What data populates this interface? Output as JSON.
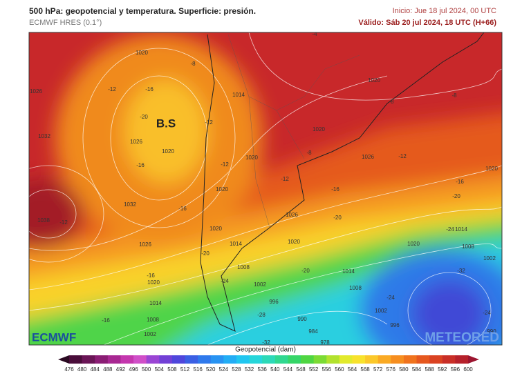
{
  "header": {
    "title": "500 hPa: geopotencial y temperatura. Superficie: presión.",
    "model": "ECMWF HRES (0.1°)",
    "init": "Inicio: Jue 18 jul 2024, 00 UTC",
    "valid": "Válido: Sáb 20 jul 2024, 18 UTC (H+66)"
  },
  "map": {
    "pressure_center": "B.S",
    "labels": [
      "1020",
      "-8",
      "1026",
      "-12",
      "-16",
      "-20",
      "1032",
      "1026",
      "1020",
      "-16",
      "-12",
      "1014",
      "-4",
      "1020",
      "-8",
      "-8",
      "1020",
      "-8",
      "1020",
      "-12",
      "1026",
      "-12",
      "1020",
      "-16",
      "-12",
      "-16",
      "-20",
      "1020",
      "1032",
      "-16",
      "1038",
      "-12",
      "-20",
      "1026",
      "1020",
      "-24",
      "1014",
      "1026",
      "1014",
      "1020",
      "1020",
      "1008",
      "-20",
      "1002",
      "1008",
      "-32",
      "-20",
      "1014",
      "-16",
      "1020",
      "-24",
      "1002",
      "1008",
      "1014",
      "996",
      "-24",
      "-24",
      "-28",
      "990",
      "1002",
      "-16",
      "1008",
      "996",
      "984",
      "1002",
      "-32",
      "978",
      "990"
    ]
  },
  "logos": {
    "left": "ECMWF",
    "right": "METEORED"
  },
  "colorbar": {
    "title": "Geopotencial (dam)",
    "ticks": [
      476,
      480,
      484,
      488,
      492,
      496,
      500,
      504,
      508,
      512,
      516,
      520,
      524,
      528,
      532,
      536,
      540,
      544,
      548,
      552,
      556,
      560,
      564,
      568,
      572,
      576,
      580,
      584,
      588,
      592,
      596,
      600
    ],
    "colors": [
      "#2b0a22",
      "#4a0d3a",
      "#6a1556",
      "#8a1d74",
      "#a82892",
      "#c437ae",
      "#d04fc8",
      "#9a45d4",
      "#7240d6",
      "#4f46dc",
      "#3a5fe4",
      "#2f79ec",
      "#2893f2",
      "#22adf5",
      "#20c6f0",
      "#26d6da",
      "#2cd9b8",
      "#30d890",
      "#36d668",
      "#4fd642",
      "#7cdb34",
      "#b2e22e",
      "#e2ea2c",
      "#f8e22c",
      "#fbc82a",
      "#faaa24",
      "#f68e1f",
      "#f0731d",
      "#e6581f",
      "#da4222",
      "#c92f27",
      "#b6212b",
      "#9c1530"
    ]
  }
}
